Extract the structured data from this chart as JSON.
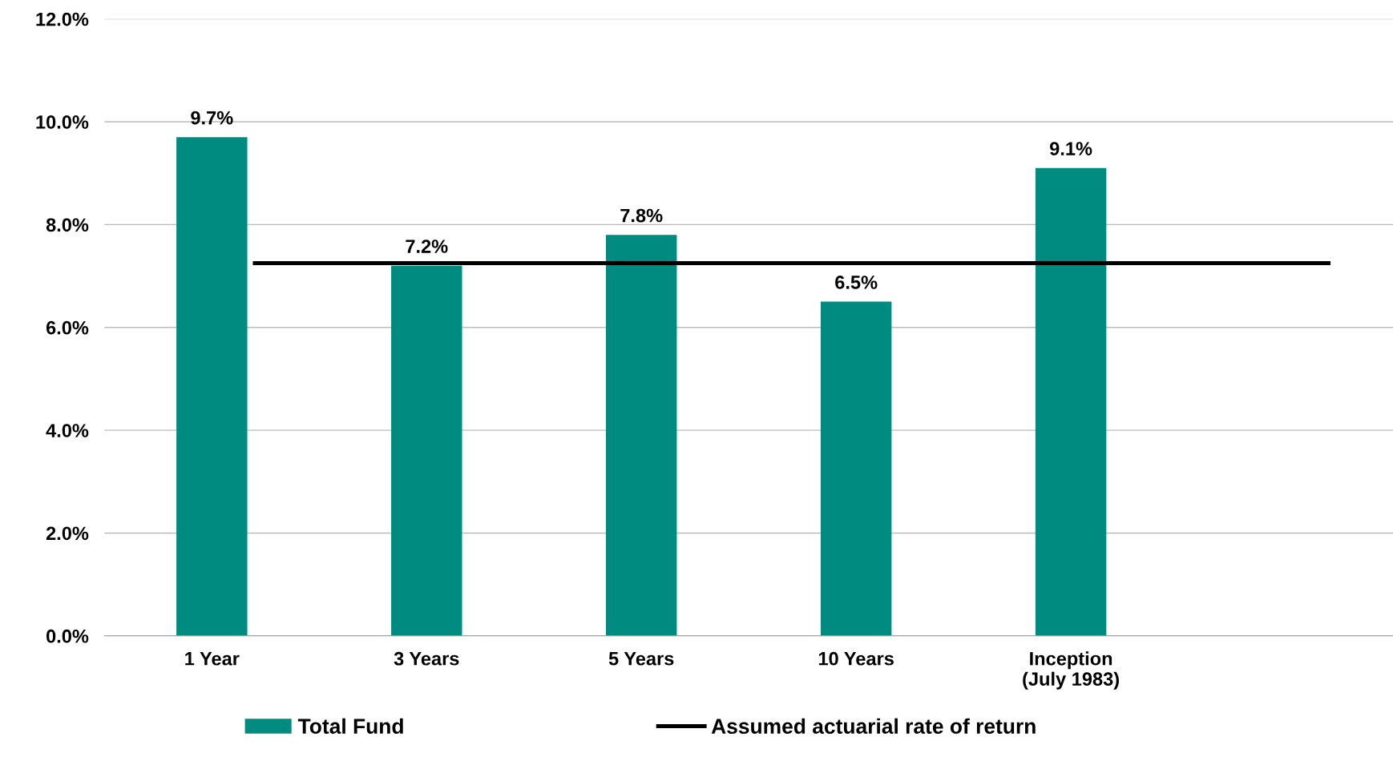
{
  "chart_data": {
    "type": "bar",
    "categories": [
      "1 Year",
      "3 Years",
      "5 Years",
      "10 Years",
      "Inception\n(July 1983)",
      null
    ],
    "series": [
      {
        "name": "Total Fund",
        "color": "#008b80",
        "values": [
          9.7,
          7.2,
          7.8,
          6.5,
          9.1,
          null
        ],
        "value_labels": [
          "9.7%",
          "7.2%",
          "7.8%",
          "6.5%",
          "9.1%",
          null
        ]
      },
      {
        "name": "Assumed actuarial rate of return",
        "type": "line",
        "color": "#000000",
        "values": [
          7.25,
          7.25,
          7.25,
          7.25,
          7.25,
          7.25
        ]
      }
    ],
    "ylim": [
      0,
      12
    ],
    "yticks": [
      {
        "value": 0,
        "label": "0.0%"
      },
      {
        "value": 2,
        "label": "2.0%"
      },
      {
        "value": 4,
        "label": "4.0%"
      },
      {
        "value": 6,
        "label": "6.0%"
      },
      {
        "value": 8,
        "label": "8.0%"
      },
      {
        "value": 10,
        "label": "10.0%"
      },
      {
        "value": 12,
        "label": "12.0%"
      }
    ],
    "grid": "y",
    "legend": "bottom",
    "marker": "none",
    "line_style": "solid"
  }
}
